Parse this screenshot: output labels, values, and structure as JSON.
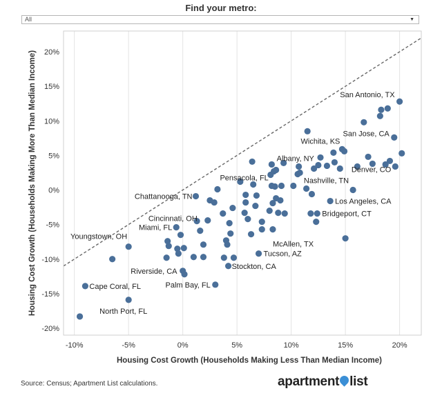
{
  "filter": {
    "title": "Find your metro:",
    "selected": "All",
    "caret": "▼"
  },
  "source": "Source: Census; Apartment List calculations.",
  "logo": {
    "left": "apartment",
    "right": "list",
    "icon": "pin-icon",
    "icon_color": "#3b8fd6"
  },
  "chart_data": {
    "type": "scatter",
    "xlabel": "Housing Cost Growth (Households Making Less Than Median Income)",
    "ylabel": "Housing Cost Growth (Households Making More Than Median Income)",
    "xlim": [
      -11,
      22
    ],
    "ylim": [
      -21,
      23
    ],
    "xticks": [
      -10,
      -5,
      0,
      5,
      10,
      15,
      20
    ],
    "yticks": [
      -20,
      -15,
      -10,
      -5,
      0,
      5,
      10,
      15,
      20
    ],
    "tick_format": "percent",
    "grid": "vertical",
    "reference_line": "y = x, dashed gray",
    "point_color": "#4a6f99",
    "points": [
      {
        "x": -9.5,
        "y": -18.3
      },
      {
        "x": -9.0,
        "y": -13.9
      },
      {
        "x": -6.5,
        "y": -10.0
      },
      {
        "x": -5.0,
        "y": -15.9
      },
      {
        "x": -5.0,
        "y": -8.2
      },
      {
        "x": -1.5,
        "y": -9.8
      },
      {
        "x": -1.4,
        "y": -7.4
      },
      {
        "x": -1.3,
        "y": -8.1
      },
      {
        "x": -0.6,
        "y": -5.4
      },
      {
        "x": -0.5,
        "y": -8.5
      },
      {
        "x": -0.4,
        "y": -9.2
      },
      {
        "x": -0.2,
        "y": -6.5
      },
      {
        "x": 0.0,
        "y": -11.7
      },
      {
        "x": 0.1,
        "y": -8.4
      },
      {
        "x": 0.15,
        "y": -12.2
      },
      {
        "x": 1.0,
        "y": -9.7
      },
      {
        "x": 1.2,
        "y": -0.9
      },
      {
        "x": 1.3,
        "y": -4.5
      },
      {
        "x": 1.6,
        "y": -5.9
      },
      {
        "x": 1.9,
        "y": -9.7
      },
      {
        "x": 1.9,
        "y": -7.9
      },
      {
        "x": 2.3,
        "y": -4.4
      },
      {
        "x": 2.5,
        "y": -1.5
      },
      {
        "x": 2.9,
        "y": -1.8
      },
      {
        "x": 3.0,
        "y": -13.7
      },
      {
        "x": 3.2,
        "y": 0.1
      },
      {
        "x": 3.7,
        "y": -3.4
      },
      {
        "x": 3.8,
        "y": -9.8
      },
      {
        "x": 4.0,
        "y": -7.3
      },
      {
        "x": 4.1,
        "y": -7.9
      },
      {
        "x": 4.2,
        "y": -11.0
      },
      {
        "x": 4.3,
        "y": -4.8
      },
      {
        "x": 4.4,
        "y": -6.3
      },
      {
        "x": 4.6,
        "y": -2.6
      },
      {
        "x": 4.7,
        "y": -9.8
      },
      {
        "x": 5.3,
        "y": 1.2
      },
      {
        "x": 5.7,
        "y": -3.3
      },
      {
        "x": 5.8,
        "y": -0.7
      },
      {
        "x": 5.8,
        "y": -1.8
      },
      {
        "x": 6.0,
        "y": -4.2
      },
      {
        "x": 6.3,
        "y": -6.4
      },
      {
        "x": 6.4,
        "y": 4.1
      },
      {
        "x": 6.5,
        "y": 0.8
      },
      {
        "x": 6.7,
        "y": -2.3
      },
      {
        "x": 6.8,
        "y": -0.8
      },
      {
        "x": 7.0,
        "y": -9.2
      },
      {
        "x": 7.3,
        "y": -5.7
      },
      {
        "x": 7.3,
        "y": -4.6
      },
      {
        "x": 8.0,
        "y": -3.0
      },
      {
        "x": 8.1,
        "y": 2.2
      },
      {
        "x": 8.2,
        "y": 3.7
      },
      {
        "x": 8.2,
        "y": 0.6
      },
      {
        "x": 8.3,
        "y": -5.7
      },
      {
        "x": 8.3,
        "y": -1.9
      },
      {
        "x": 8.4,
        "y": 2.7
      },
      {
        "x": 8.5,
        "y": 0.5
      },
      {
        "x": 8.6,
        "y": -1.2
      },
      {
        "x": 8.6,
        "y": 2.9
      },
      {
        "x": 8.8,
        "y": -3.3
      },
      {
        "x": 9.0,
        "y": -1.5
      },
      {
        "x": 9.1,
        "y": 0.6
      },
      {
        "x": 9.3,
        "y": 3.9
      },
      {
        "x": 9.4,
        "y": -3.4
      },
      {
        "x": 10.2,
        "y": 0.6
      },
      {
        "x": 10.6,
        "y": 2.3
      },
      {
        "x": 10.7,
        "y": 3.4
      },
      {
        "x": 10.8,
        "y": 2.5
      },
      {
        "x": 11.4,
        "y": 0.2
      },
      {
        "x": 11.5,
        "y": 8.5
      },
      {
        "x": 11.8,
        "y": -3.4
      },
      {
        "x": 11.9,
        "y": -0.6
      },
      {
        "x": 12.1,
        "y": 3.1
      },
      {
        "x": 12.3,
        "y": -4.6
      },
      {
        "x": 12.4,
        "y": -3.4
      },
      {
        "x": 12.5,
        "y": 3.6
      },
      {
        "x": 12.7,
        "y": 4.7
      },
      {
        "x": 13.3,
        "y": 3.5
      },
      {
        "x": 13.6,
        "y": -1.6
      },
      {
        "x": 13.9,
        "y": 5.4
      },
      {
        "x": 14.0,
        "y": 4.0
      },
      {
        "x": 14.5,
        "y": 3.1
      },
      {
        "x": 14.7,
        "y": 5.9
      },
      {
        "x": 14.9,
        "y": 5.6
      },
      {
        "x": 15.0,
        "y": -7.0
      },
      {
        "x": 15.7,
        "y": 0.0
      },
      {
        "x": 16.1,
        "y": 3.4
      },
      {
        "x": 16.7,
        "y": 9.8
      },
      {
        "x": 17.1,
        "y": 4.8
      },
      {
        "x": 17.5,
        "y": 3.8
      },
      {
        "x": 18.2,
        "y": 10.7
      },
      {
        "x": 18.3,
        "y": 11.6
      },
      {
        "x": 18.7,
        "y": 3.7
      },
      {
        "x": 18.9,
        "y": 11.8
      },
      {
        "x": 19.1,
        "y": 4.2
      },
      {
        "x": 19.5,
        "y": 7.6
      },
      {
        "x": 19.6,
        "y": 3.4
      },
      {
        "x": 20.0,
        "y": 12.8
      },
      {
        "x": 20.2,
        "y": 5.3
      }
    ],
    "annotations": [
      {
        "text": "San Antonio, TX",
        "x": 20.0,
        "y": 12.8
      },
      {
        "text": "San Jose, CA",
        "x": 19.5,
        "y": 7.6
      },
      {
        "text": "Wichita, KS",
        "x": 14.7,
        "y": 5.9
      },
      {
        "text": "Albany, NY",
        "x": 12.5,
        "y": 3.6
      },
      {
        "text": "Denver, CO",
        "x": 19.6,
        "y": 3.4
      },
      {
        "text": "Pensacola, FL",
        "x": 8.1,
        "y": 2.2
      },
      {
        "text": "Nashville, TN",
        "x": 15.7,
        "y": 0.0
      },
      {
        "text": "Chattanooga, TN",
        "x": 1.2,
        "y": -0.9
      },
      {
        "text": "Los Angeles, CA",
        "x": 13.6,
        "y": -1.6
      },
      {
        "text": "Cincinnati, OH",
        "x": 1.6,
        "y": -5.9
      },
      {
        "text": "Bridgeport, CT",
        "x": 12.4,
        "y": -3.4
      },
      {
        "text": "Miami, FL",
        "x": -0.6,
        "y": -5.4
      },
      {
        "text": "Youngstown, OH",
        "x": -5.0,
        "y": -8.2
      },
      {
        "text": "McAllen, TX",
        "x": 8.3,
        "y": -5.7
      },
      {
        "text": "Tucson, AZ",
        "x": 7.0,
        "y": -9.2
      },
      {
        "text": "Stockton, CA",
        "x": 4.2,
        "y": -11.0
      },
      {
        "text": "Riverside, CA",
        "x": -0.2,
        "y": -11.7
      },
      {
        "text": "Palm Bay, FL",
        "x": 3.0,
        "y": -13.7
      },
      {
        "text": "Cape Coral, FL",
        "x": -9.0,
        "y": -13.9
      },
      {
        "text": "North Port, FL",
        "x": -5.0,
        "y": -15.9
      }
    ]
  }
}
